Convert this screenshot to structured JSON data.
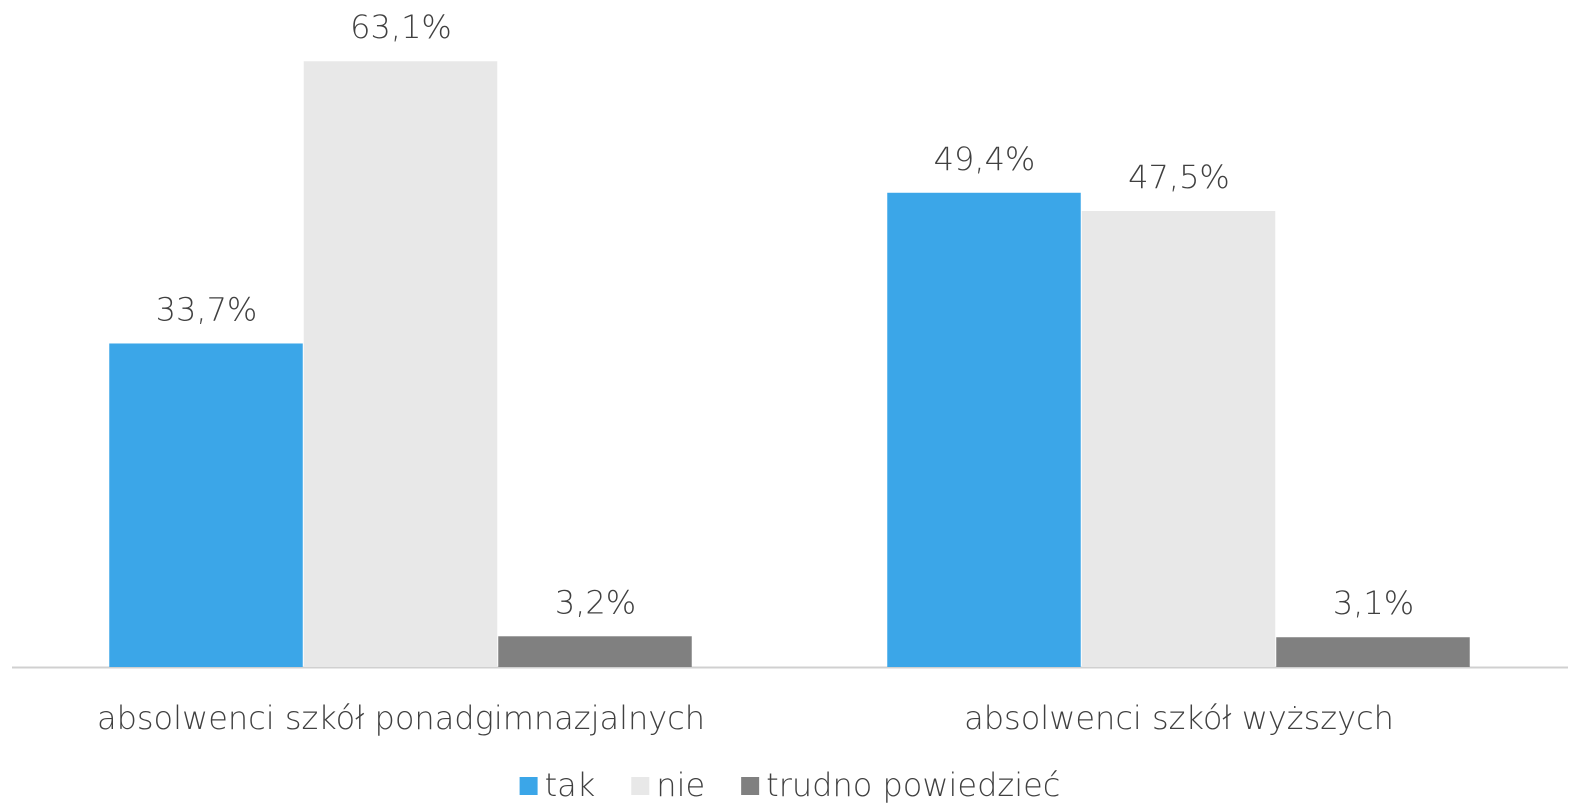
{
  "chart_data": {
    "type": "bar",
    "categories": [
      "absolwenci szkół ponadgimnazjalnych",
      "absolwenci szkół wyższych"
    ],
    "series": [
      {
        "name": "tak",
        "color": "#3ba6e8",
        "values": [
          33.7,
          49.4
        ],
        "value_labels": [
          "33,7%",
          "49,4%"
        ]
      },
      {
        "name": "nie",
        "color": "#e8e8e8",
        "values": [
          63.1,
          47.5
        ],
        "value_labels": [
          "63,1%",
          "47,5%"
        ]
      },
      {
        "name": "trudno powiedzieć",
        "color": "#808080",
        "values": [
          3.2,
          3.1
        ],
        "value_labels": [
          "3,2%",
          "3,1%"
        ]
      }
    ],
    "legend": "bottom"
  }
}
